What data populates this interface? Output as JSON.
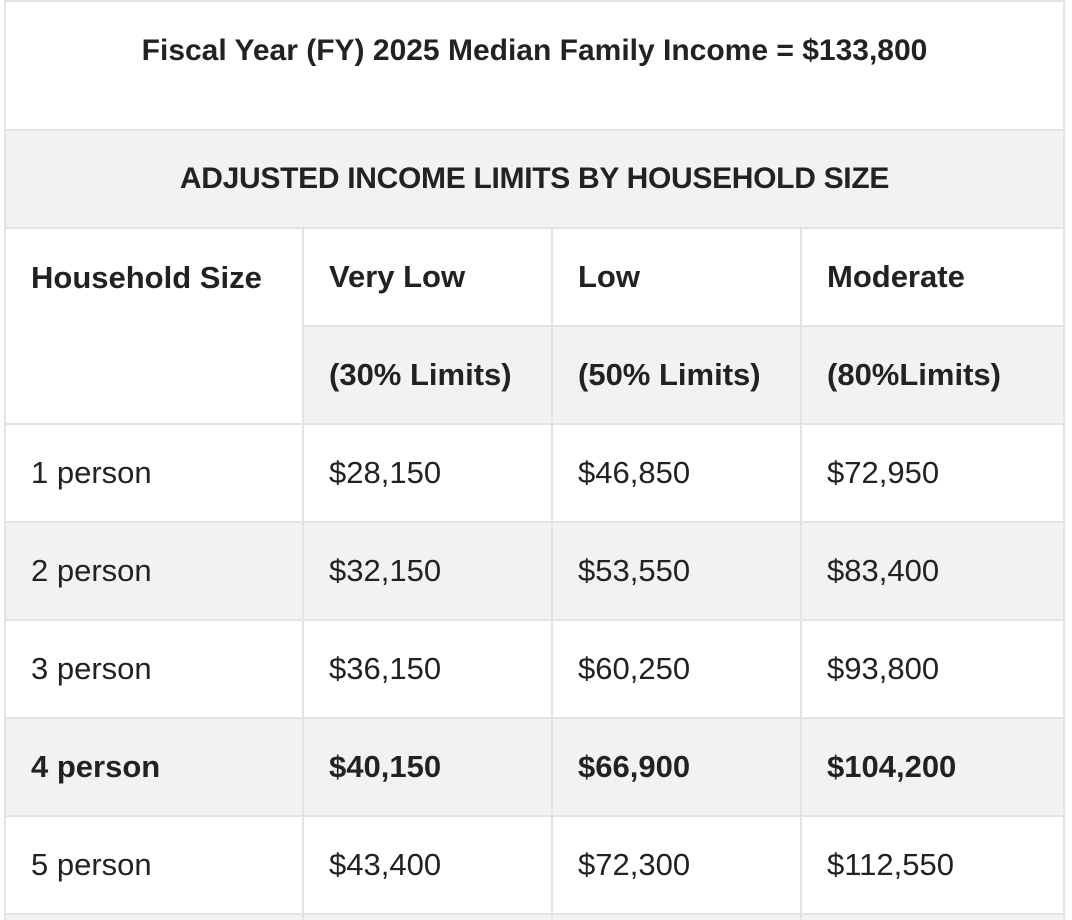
{
  "title": "Fiscal Year (FY) 2025 Median Family Income = $133,800",
  "section_heading": "ADJUSTED INCOME LIMITS BY HOUSEHOLD SIZE",
  "columns": {
    "household_size": "Household Size",
    "very_low": "Very Low",
    "low": "Low",
    "moderate": "Moderate"
  },
  "subheaders": {
    "very_low": "(30% Limits)",
    "low": "(50% Limits)",
    "moderate": "(80%Limits)"
  },
  "rows": [
    {
      "size": "1 person",
      "very_low": "$28,150",
      "low": "$46,850",
      "moderate": "$72,950"
    },
    {
      "size": "2 person",
      "very_low": "$32,150",
      "low": "$53,550",
      "moderate": "$83,400"
    },
    {
      "size": "3 person",
      "very_low": "$36,150",
      "low": "$60,250",
      "moderate": "$93,800"
    },
    {
      "size": "4 person",
      "very_low": "$40,150",
      "low": "$66,900",
      "moderate": "$104,200"
    },
    {
      "size": "5 person",
      "very_low": "$43,400",
      "low": "$72,300",
      "moderate": "$112,550"
    }
  ],
  "colors": {
    "border": "#e3e3e3",
    "stripe": "#f2f2f2",
    "text": "#222222"
  }
}
